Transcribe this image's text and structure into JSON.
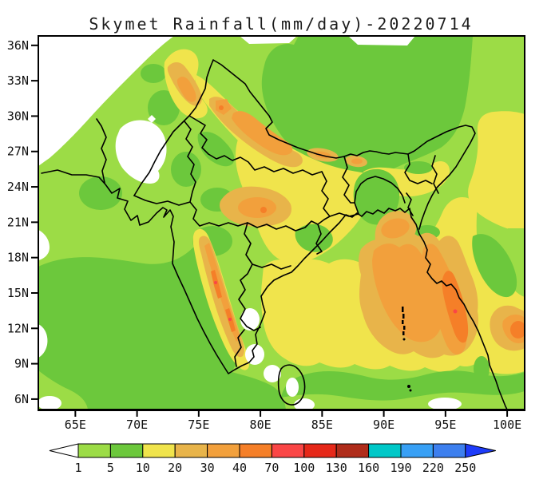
{
  "title": "Skymet Rainfall(mm/day)-20220714",
  "axes": {
    "lat_tick_labels": [
      "36N",
      "33N",
      "30N",
      "27N",
      "24N",
      "21N",
      "18N",
      "15N",
      "12N",
      "9N",
      "6N"
    ],
    "lon_tick_labels": [
      "65E",
      "70E",
      "75E",
      "80E",
      "85E",
      "90E",
      "95E",
      "100E"
    ]
  },
  "colorbar": {
    "tick_labels": [
      "1",
      "5",
      "10",
      "20",
      "30",
      "40",
      "70",
      "100",
      "130",
      "160",
      "190",
      "220",
      "250"
    ],
    "levels": [
      1,
      5,
      10,
      20,
      30,
      40,
      70,
      100,
      130,
      160,
      190,
      220,
      250
    ],
    "segment_colors": [
      "#9CDC46",
      "#6CC83C",
      "#F0E44C",
      "#E8B44A",
      "#F2A03C",
      "#F57F28",
      "#FA4646",
      "#E62819",
      "#AF2C1A",
      "#00C8C8",
      "#38A0F5",
      "#3D7FEE"
    ],
    "left_arrow_color": "#FFFFFF",
    "right_arrow_color": "#1E3CFA"
  },
  "palette": {
    "no_rain": "#FFFFFF",
    "rain_1_5": "#9CDC46",
    "rain_5_10": "#6CC83C",
    "rain_10_20": "#F0E44C",
    "rain_20_30": "#E8B44A",
    "rain_30_40": "#F2A03C",
    "rain_40_70": "#F57F28",
    "rain_70_100": "#FA4646"
  }
}
